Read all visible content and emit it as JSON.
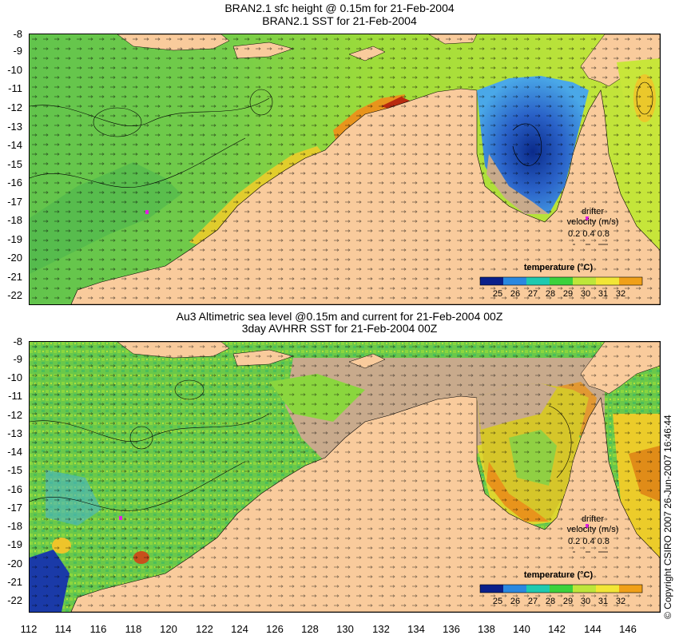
{
  "top_panel": {
    "title_line1": "BRAN2.1 sfc height @ 0.15m for 21-Feb-2004",
    "title_line2": "BRAN2.1 SST for 21-Feb-2004",
    "drifter": {
      "line1": "drifter",
      "line2": "velocity (m/s)",
      "scale": "0.2 0.4 0.8"
    },
    "colorbar": {
      "title": "temperature (°C)",
      "ticks": [
        "25",
        "26",
        "27",
        "28",
        "29",
        "30",
        "31",
        "32"
      ]
    }
  },
  "bottom_panel": {
    "title_line1": "Au3 Altimetric sea level  @0.15m and current for 21-Feb-2004 00Z",
    "title_line2": "3day AVHRR SST for 21-Feb-2004 00Z",
    "drifter": {
      "line1": "drifter",
      "line2": "velocity (m/s)",
      "scale": "0.2 0.4 0.8"
    },
    "colorbar": {
      "title": "temperature (°C)",
      "ticks": [
        "25",
        "26",
        "27",
        "28",
        "29",
        "30",
        "31",
        "32"
      ]
    }
  },
  "axes": {
    "y_ticks": [
      "-8",
      "-9",
      "-10",
      "-11",
      "-12",
      "-13",
      "-14",
      "-15",
      "-16",
      "-17",
      "-18",
      "-19",
      "-20",
      "-21",
      "-22"
    ],
    "x_ticks": [
      "112",
      "114",
      "116",
      "118",
      "120",
      "122",
      "124",
      "126",
      "128",
      "130",
      "132",
      "134",
      "136",
      "138",
      "140",
      "142",
      "144",
      "146"
    ]
  },
  "copyright": "© Copyright CSIRO 2007  26-Jun-2007 16:46:44",
  "colors": {
    "land": "#f9cb9c",
    "ocean_warm": "#7ed24a",
    "ocean_hot": "#e89a1c",
    "gulf_cold": "#2a62c8",
    "cloud": "#c8aa8c"
  }
}
